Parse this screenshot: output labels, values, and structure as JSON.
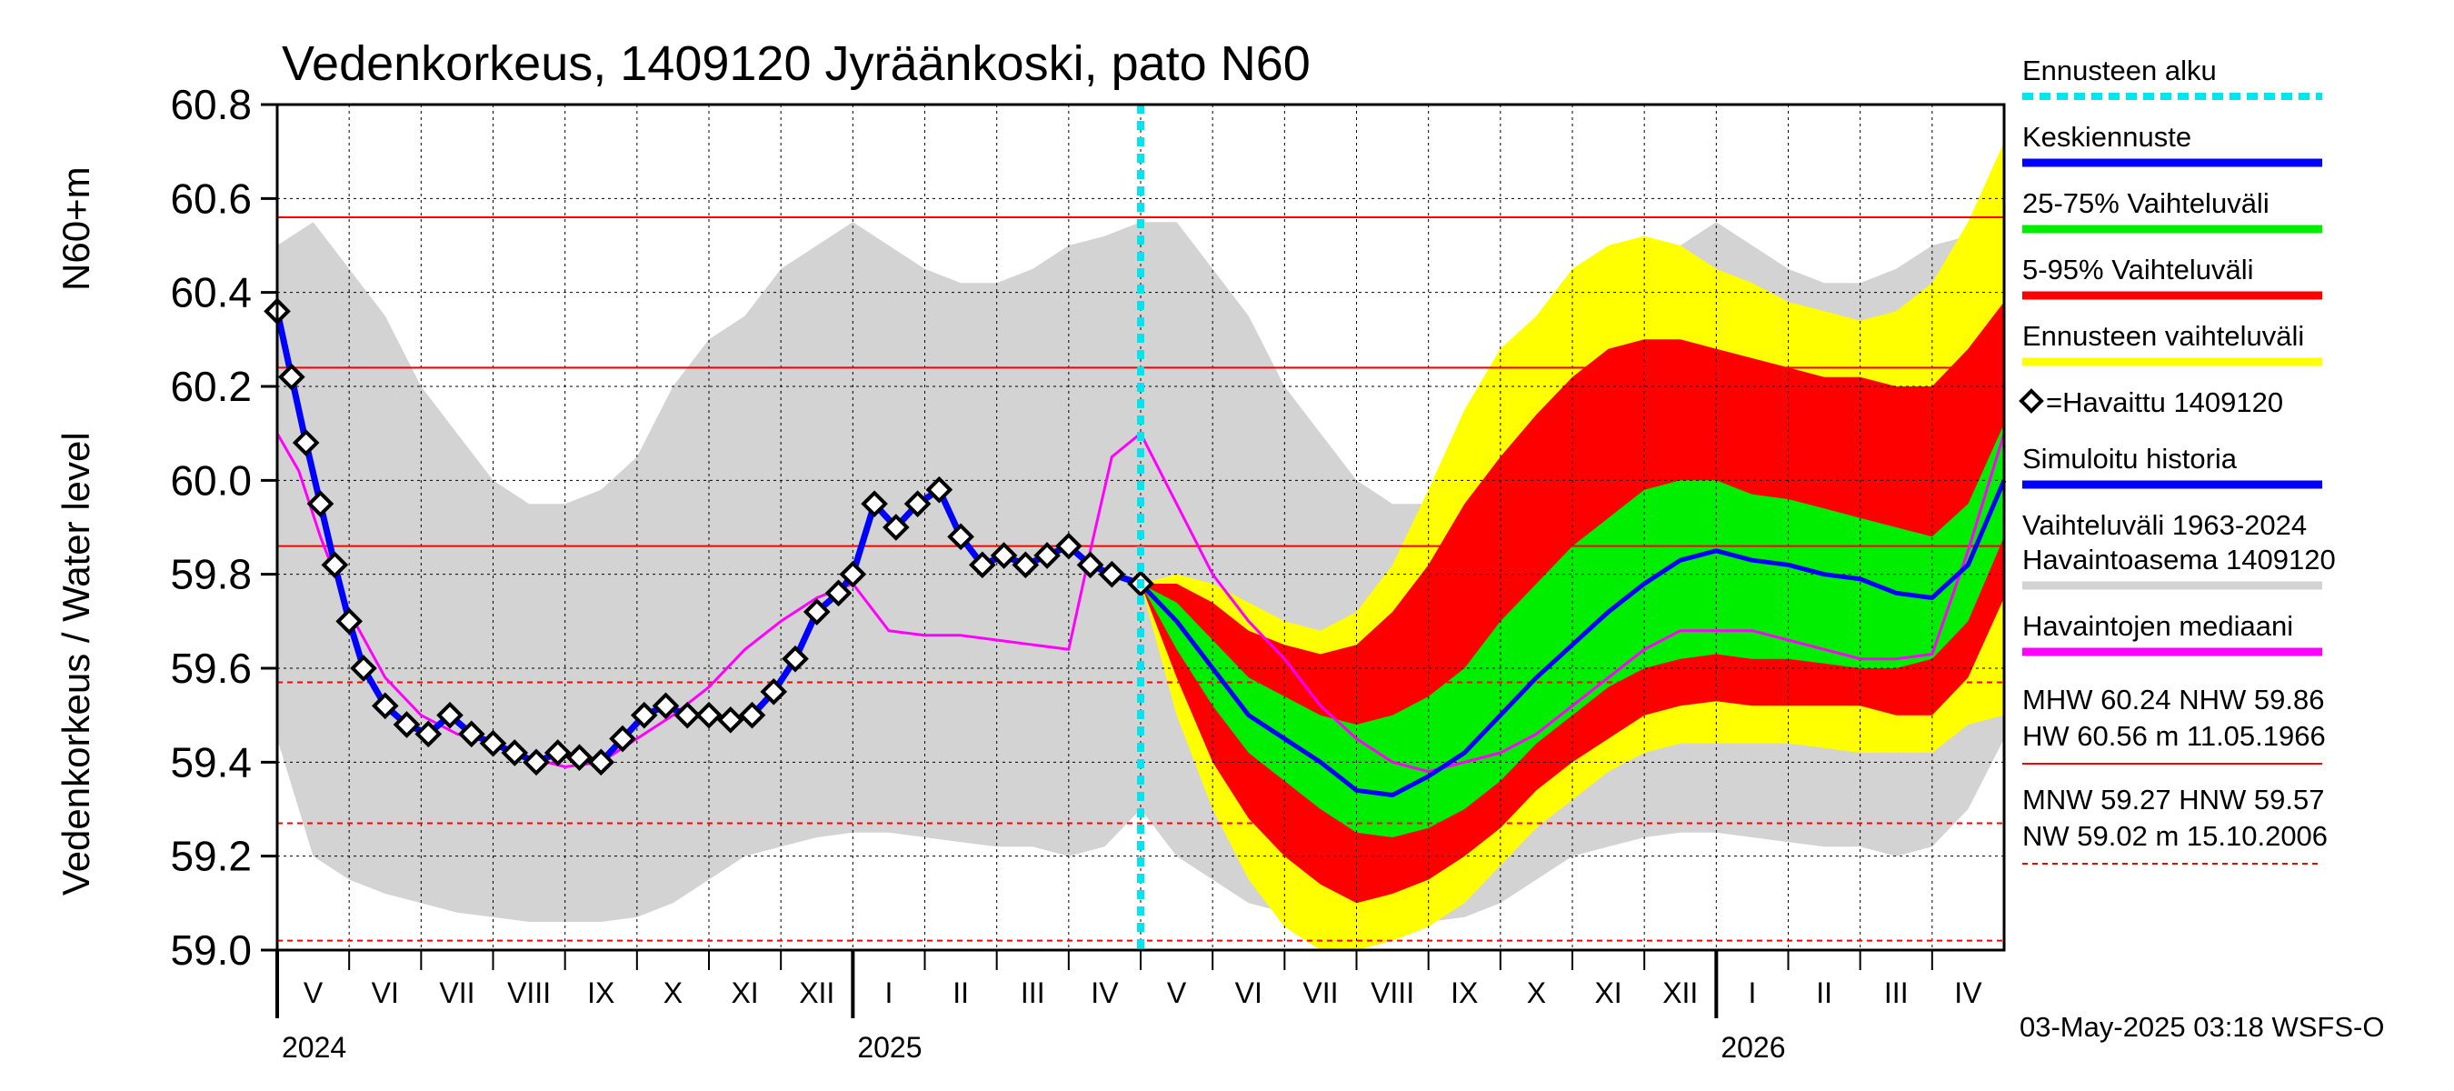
{
  "chart_data": {
    "type": "line",
    "title": "Vedenkorkeus, 1409120 Jyräänkoski, pato N60",
    "ylabel_left": "Vedenkorkeus / Water level",
    "ylabel_unit": "N60+m",
    "ylim": [
      59.0,
      60.8
    ],
    "yticks": [
      "59.0",
      "59.2",
      "59.4",
      "59.6",
      "59.8",
      "60.0",
      "60.2",
      "60.4",
      "60.6",
      "60.8"
    ],
    "grid": "on",
    "legend_position": "right",
    "colors": {
      "band_hist": "#d3d3d3",
      "band_5_95_outer": "#ffff00",
      "band_5_95": "#ff0000",
      "band_25_75": "#00ee00",
      "mean": "#0000ff",
      "median": "#ff00ff",
      "observed": "#000000",
      "forecast_start": "#00e5ee",
      "reference_line": "#ff0000"
    },
    "months": [
      {
        "label": "V",
        "x": 0.0
      },
      {
        "label": "VI",
        "x": 1.0
      },
      {
        "label": "VII",
        "x": 2.0
      },
      {
        "label": "VIII",
        "x": 3.0
      },
      {
        "label": "IX",
        "x": 4.0
      },
      {
        "label": "X",
        "x": 5.0
      },
      {
        "label": "XI",
        "x": 6.0
      },
      {
        "label": "XII",
        "x": 7.0
      },
      {
        "label": "I",
        "x": 8.0
      },
      {
        "label": "II",
        "x": 9.0
      },
      {
        "label": "III",
        "x": 10.0
      },
      {
        "label": "IV",
        "x": 11.0
      },
      {
        "label": "V",
        "x": 12.0
      },
      {
        "label": "VI",
        "x": 13.0
      },
      {
        "label": "VII",
        "x": 14.0
      },
      {
        "label": "VIII",
        "x": 15.0
      },
      {
        "label": "IX",
        "x": 16.0
      },
      {
        "label": "X",
        "x": 17.0
      },
      {
        "label": "XI",
        "x": 18.0
      },
      {
        "label": "XII",
        "x": 19.0
      },
      {
        "label": "I",
        "x": 20.0
      },
      {
        "label": "II",
        "x": 21.0
      },
      {
        "label": "III",
        "x": 22.0
      },
      {
        "label": "IV",
        "x": 23.0
      }
    ],
    "years": [
      {
        "label": "2024",
        "x": 0.0
      },
      {
        "label": "2025",
        "x": 8.0
      },
      {
        "label": "2026",
        "x": 20.0
      }
    ],
    "xlim": [
      0,
      24
    ],
    "forecast_start_x": 12.0,
    "reference_lines": [
      {
        "name": "HW",
        "value": 60.56,
        "style": "solid"
      },
      {
        "name": "MHW",
        "value": 60.24,
        "style": "solid"
      },
      {
        "name": "NHW",
        "value": 59.86,
        "style": "solid"
      },
      {
        "name": "HNW",
        "value": 59.57,
        "style": "dashed"
      },
      {
        "name": "MNW",
        "value": 59.27,
        "style": "dashed"
      },
      {
        "name": "NW",
        "value": 59.02,
        "style": "dashed"
      }
    ],
    "historical_range": {
      "x": [
        0,
        0.5,
        1,
        1.5,
        2,
        2.5,
        3,
        3.5,
        4,
        4.5,
        5,
        5.5,
        6,
        6.5,
        7,
        7.5,
        8,
        8.5,
        9,
        9.5,
        10,
        10.5,
        11,
        11.5,
        12,
        12.5,
        13,
        13.5,
        14,
        14.5,
        15,
        15.5,
        16,
        16.5,
        17,
        17.5,
        18,
        18.5,
        19,
        19.5,
        20,
        20.5,
        21,
        21.5,
        22,
        22.5,
        23,
        23.5,
        24
      ],
      "low": [
        59.45,
        59.2,
        59.15,
        59.12,
        59.1,
        59.08,
        59.07,
        59.06,
        59.06,
        59.06,
        59.07,
        59.1,
        59.15,
        59.2,
        59.22,
        59.24,
        59.25,
        59.25,
        59.24,
        59.23,
        59.22,
        59.22,
        59.2,
        59.22,
        59.3,
        59.2,
        59.15,
        59.1,
        59.08,
        59.07,
        59.06,
        59.06,
        59.06,
        59.07,
        59.1,
        59.15,
        59.2,
        59.22,
        59.24,
        59.25,
        59.25,
        59.24,
        59.23,
        59.22,
        59.22,
        59.2,
        59.22,
        59.3,
        59.45
      ],
      "high": [
        60.5,
        60.55,
        60.45,
        60.35,
        60.2,
        60.1,
        60.0,
        59.95,
        59.95,
        59.98,
        60.05,
        60.2,
        60.3,
        60.35,
        60.45,
        60.5,
        60.55,
        60.5,
        60.45,
        60.42,
        60.42,
        60.45,
        60.5,
        60.52,
        60.55,
        60.55,
        60.45,
        60.35,
        60.2,
        60.1,
        60.0,
        59.95,
        59.95,
        59.98,
        60.05,
        60.2,
        60.3,
        60.35,
        60.45,
        60.5,
        60.55,
        60.5,
        60.45,
        60.42,
        60.42,
        60.45,
        60.5,
        60.52,
        60.55
      ]
    },
    "observed": {
      "x": [
        0,
        0.2,
        0.4,
        0.6,
        0.8,
        1.0,
        1.2,
        1.5,
        1.8,
        2.1,
        2.4,
        2.7,
        3.0,
        3.3,
        3.6,
        3.9,
        4.2,
        4.5,
        4.8,
        5.1,
        5.4,
        5.7,
        6.0,
        6.3,
        6.6,
        6.9,
        7.2,
        7.5,
        7.8,
        8.0,
        8.3,
        8.6,
        8.9,
        9.2,
        9.5,
        9.8,
        10.1,
        10.4,
        10.7,
        11.0,
        11.3,
        11.6,
        12.0
      ],
      "y": [
        60.36,
        60.22,
        60.08,
        59.95,
        59.82,
        59.7,
        59.6,
        59.52,
        59.48,
        59.46,
        59.5,
        59.46,
        59.44,
        59.42,
        59.4,
        59.42,
        59.41,
        59.4,
        59.45,
        59.5,
        59.52,
        59.5,
        59.5,
        59.49,
        59.5,
        59.55,
        59.62,
        59.72,
        59.76,
        59.8,
        59.95,
        59.9,
        59.95,
        59.98,
        59.88,
        59.82,
        59.84,
        59.82,
        59.84,
        59.86,
        59.82,
        59.8,
        59.78
      ]
    },
    "median": {
      "x": [
        0,
        0.3,
        0.6,
        1.0,
        1.5,
        2.0,
        2.5,
        3.0,
        3.5,
        4.0,
        4.5,
        5.0,
        5.5,
        6.0,
        6.5,
        7.0,
        7.5,
        8.0,
        8.5,
        9.0,
        9.5,
        10.0,
        10.5,
        11.0,
        11.3,
        11.6,
        12.0,
        12.5,
        13.0,
        13.5,
        14.0,
        14.5,
        15.0,
        15.5,
        16.0,
        16.5,
        17.0,
        17.5,
        18.0,
        18.5,
        19.0,
        19.5,
        20.0,
        20.5,
        21.0,
        21.5,
        22.0,
        22.5,
        23.0,
        23.5,
        24.0
      ],
      "y": [
        60.1,
        60.02,
        59.88,
        59.72,
        59.58,
        59.5,
        59.46,
        59.44,
        59.41,
        59.39,
        59.4,
        59.45,
        59.5,
        59.56,
        59.64,
        59.7,
        59.75,
        59.78,
        59.68,
        59.67,
        59.67,
        59.66,
        59.65,
        59.64,
        59.85,
        60.05,
        60.1,
        59.95,
        59.8,
        59.7,
        59.62,
        59.52,
        59.45,
        59.4,
        59.38,
        59.4,
        59.42,
        59.46,
        59.52,
        59.58,
        59.64,
        59.68,
        59.68,
        59.68,
        59.66,
        59.64,
        59.62,
        59.62,
        59.63,
        59.85,
        60.1
      ]
    },
    "forecast": {
      "x": [
        12.0,
        12.5,
        13.0,
        13.5,
        14.0,
        14.5,
        15.0,
        15.5,
        16.0,
        16.5,
        17.0,
        17.5,
        18.0,
        18.5,
        19.0,
        19.5,
        20.0,
        20.5,
        21.0,
        21.5,
        22.0,
        22.5,
        23.0,
        23.5,
        24.0
      ],
      "mean": [
        59.78,
        59.7,
        59.6,
        59.5,
        59.45,
        59.4,
        59.34,
        59.33,
        59.37,
        59.42,
        59.5,
        59.58,
        59.65,
        59.72,
        59.78,
        59.83,
        59.85,
        59.83,
        59.82,
        59.8,
        59.79,
        59.76,
        59.75,
        59.82,
        60.0
      ],
      "p25": [
        59.78,
        59.64,
        59.52,
        59.42,
        59.36,
        59.3,
        59.25,
        59.24,
        59.26,
        59.3,
        59.36,
        59.44,
        59.5,
        59.56,
        59.6,
        59.62,
        59.63,
        59.62,
        59.62,
        59.61,
        59.6,
        59.6,
        59.62,
        59.7,
        59.88
      ],
      "p75": [
        59.78,
        59.74,
        59.66,
        59.58,
        59.54,
        59.5,
        59.48,
        59.5,
        59.54,
        59.6,
        59.7,
        59.78,
        59.86,
        59.92,
        59.98,
        60.0,
        60.0,
        59.97,
        59.96,
        59.94,
        59.92,
        59.9,
        59.88,
        59.95,
        60.12
      ],
      "p5": [
        59.78,
        59.58,
        59.4,
        59.28,
        59.2,
        59.14,
        59.1,
        59.12,
        59.15,
        59.2,
        59.26,
        59.34,
        59.4,
        59.45,
        59.5,
        59.52,
        59.53,
        59.52,
        59.52,
        59.52,
        59.52,
        59.5,
        59.5,
        59.58,
        59.75
      ],
      "p95": [
        59.78,
        59.78,
        59.74,
        59.68,
        59.65,
        59.63,
        59.65,
        59.72,
        59.82,
        59.95,
        60.05,
        60.14,
        60.22,
        60.28,
        60.3,
        60.3,
        60.28,
        60.26,
        60.24,
        60.22,
        60.22,
        60.2,
        60.2,
        60.28,
        60.38
      ],
      "min": [
        59.78,
        59.5,
        59.3,
        59.15,
        59.05,
        59.0,
        59.0,
        59.02,
        59.05,
        59.1,
        59.18,
        59.26,
        59.32,
        59.38,
        59.42,
        59.44,
        59.44,
        59.44,
        59.44,
        59.43,
        59.42,
        59.42,
        59.42,
        59.48,
        59.5
      ],
      "max": [
        59.78,
        59.8,
        59.78,
        59.74,
        59.7,
        59.68,
        59.72,
        59.82,
        59.98,
        60.15,
        60.28,
        60.35,
        60.45,
        60.5,
        60.52,
        60.5,
        60.45,
        60.42,
        60.38,
        60.36,
        60.34,
        60.36,
        60.42,
        60.55,
        60.72
      ]
    },
    "legend": [
      {
        "label": "Ennusteen alku",
        "color": "#00e5ee",
        "style": "dashed"
      },
      {
        "label": "Keskiennuste",
        "color": "#0000ff",
        "style": "solid"
      },
      {
        "label": "25-75% Vaihteluväli",
        "color": "#00ee00",
        "style": "solid"
      },
      {
        "label": "5-95% Vaihteluväli",
        "color": "#ff0000",
        "style": "solid"
      },
      {
        "label": "Ennusteen vaihteluväli",
        "color": "#ffff00",
        "style": "solid"
      },
      {
        "label": "=Havaittu 1409120",
        "color": "#000000",
        "style": "marker"
      },
      {
        "label": "Simuloitu historia",
        "color": "#0000ff",
        "style": "solid"
      },
      {
        "label": "Vaihteluväli 1963-2024\n Havaintoasema 1409120",
        "color": "#d3d3d3",
        "style": "solid"
      },
      {
        "label": "Havaintojen mediaani",
        "color": "#ff00ff",
        "style": "solid"
      }
    ],
    "stats": [
      {
        "text": "MHW  60.24 NHW  59.86"
      },
      {
        "text": "HW  60.56 m 11.05.1966",
        "line_color": "#ff0000",
        "line_style": "solid"
      },
      {
        "text": "MNW  59.27 HNW  59.57"
      },
      {
        "text": "NW  59.02 m 15.10.2006",
        "line_color": "#ff0000",
        "line_style": "dashed"
      }
    ],
    "footer": "03-May-2025 03:18 WSFS-O"
  }
}
